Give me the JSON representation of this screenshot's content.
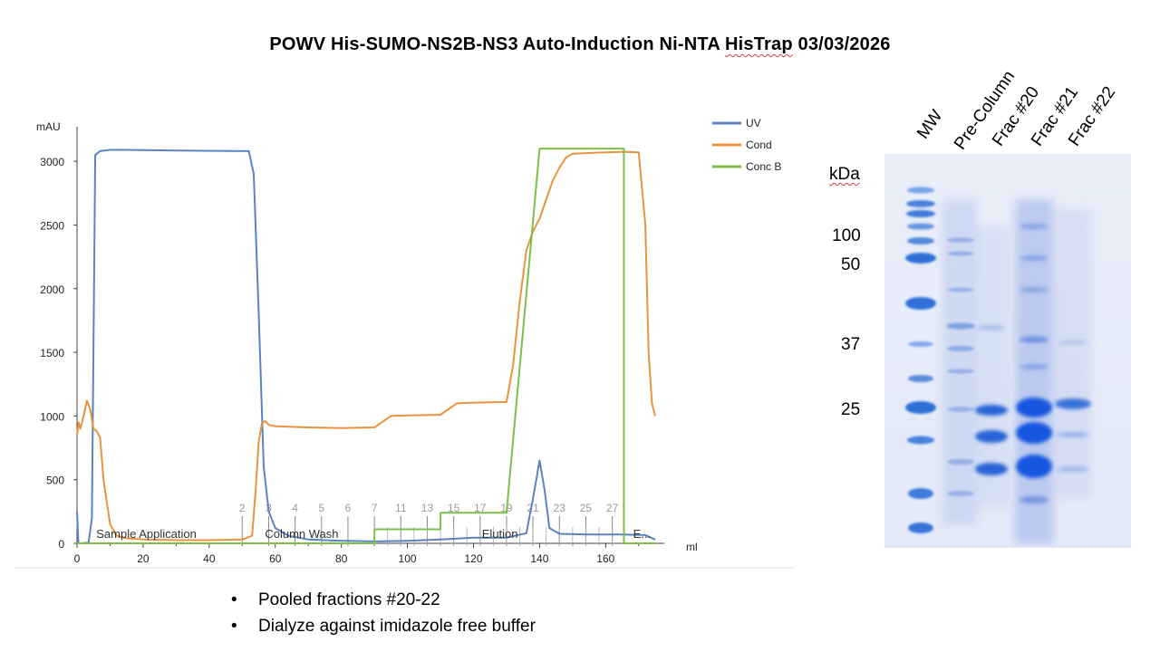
{
  "title": {
    "text": "POWV His-SUMO-NS2B-NS3 Auto-Induction Ni-NTA HisTrap 03/03/2026",
    "underlined_word": "HisTrap"
  },
  "chart_data": {
    "type": "line",
    "ylabel": "mAU",
    "xlabel": "ml",
    "xlim": [
      0,
      175
    ],
    "ylim": [
      0,
      3200
    ],
    "x_ticks": [
      0,
      20,
      40,
      60,
      80,
      100,
      120,
      140,
      160
    ],
    "y_ticks": [
      0,
      500,
      1000,
      1500,
      2000,
      2500,
      3000
    ],
    "legend_position": "top-right",
    "series": [
      {
        "name": "UV",
        "color": "#5a84c0",
        "x": [
          0,
          0.4,
          0.8,
          3.5,
          4.5,
          5.5,
          7,
          10,
          15,
          30,
          52,
          53.5,
          55,
          56.5,
          58,
          60,
          64,
          70,
          80,
          90,
          100,
          110,
          120,
          130,
          136,
          138,
          140,
          141.5,
          143,
          146,
          155,
          165,
          172,
          175
        ],
        "y": [
          250,
          0,
          0,
          5,
          200,
          3050,
          3080,
          3090,
          3090,
          3085,
          3080,
          2900,
          1800,
          600,
          250,
          120,
          60,
          30,
          20,
          15,
          20,
          30,
          45,
          45,
          80,
          350,
          650,
          420,
          120,
          75,
          70,
          70,
          65,
          30
        ]
      },
      {
        "name": "Cond",
        "color": "#e89340",
        "x": [
          0,
          0.5,
          1,
          2,
          3,
          4,
          5,
          6,
          7,
          8,
          10,
          12,
          15,
          20,
          30,
          40,
          50,
          53,
          54,
          55,
          56,
          57,
          58,
          60,
          70,
          80,
          90,
          95,
          100,
          110,
          115,
          120,
          130,
          132,
          134,
          136,
          138,
          140,
          142,
          144,
          146,
          148,
          150,
          160,
          165,
          170,
          172,
          173,
          174,
          175
        ],
        "y": [
          850,
          950,
          900,
          1000,
          1120,
          1050,
          900,
          880,
          830,
          500,
          150,
          60,
          40,
          30,
          25,
          25,
          30,
          60,
          400,
          800,
          950,
          960,
          930,
          920,
          910,
          905,
          910,
          1000,
          1005,
          1010,
          1100,
          1105,
          1110,
          1400,
          1900,
          2300,
          2450,
          2550,
          2700,
          2850,
          2950,
          3030,
          3060,
          3070,
          3075,
          3070,
          2500,
          1500,
          1100,
          1000
        ]
      },
      {
        "name": "Conc B",
        "color": "#7cbf4a",
        "x": [
          0,
          90,
          90.01,
          110,
          110.01,
          130,
          140,
          163,
          165.5,
          165.51,
          175
        ],
        "y": [
          0,
          0,
          110,
          110,
          240,
          240,
          3100,
          3100,
          3100,
          0,
          0
        ]
      }
    ],
    "fractions": [
      {
        "label": "2",
        "x": 50
      },
      {
        "label": "3",
        "x": 58
      },
      {
        "label": "4",
        "x": 66
      },
      {
        "label": "5",
        "x": 74
      },
      {
        "label": "6",
        "x": 82
      },
      {
        "label": "7",
        "x": 90
      },
      {
        "label": "11",
        "x": 98
      },
      {
        "label": "13",
        "x": 106
      },
      {
        "label": "15",
        "x": 114
      },
      {
        "label": "17",
        "x": 122
      },
      {
        "label": "19",
        "x": 130
      },
      {
        "label": "21",
        "x": 138
      },
      {
        "label": "23",
        "x": 146
      },
      {
        "label": "25",
        "x": 154
      },
      {
        "label": "27",
        "x": 162
      }
    ],
    "phases": [
      {
        "label": "Sample Application",
        "x": 21
      },
      {
        "label": "Column Wash",
        "x": 68
      },
      {
        "label": "Elution",
        "x": 128
      },
      {
        "label": "E...",
        "x": 171
      }
    ]
  },
  "gel": {
    "kda_title": "kDa",
    "lanes": [
      "MW",
      "Pre-Column",
      "Frac #20",
      "Frac #21",
      "Frac #22"
    ],
    "markers": [
      {
        "label": "100",
        "band_fraction": 0.16
      },
      {
        "label": "50",
        "band_fraction": 0.24
      },
      {
        "label": "37",
        "band_fraction": 0.41
      },
      {
        "label": "25",
        "band_fraction": 0.59
      }
    ]
  },
  "notes": [
    "Pooled fractions #20-22",
    "Dialyze against imidazole free buffer"
  ]
}
